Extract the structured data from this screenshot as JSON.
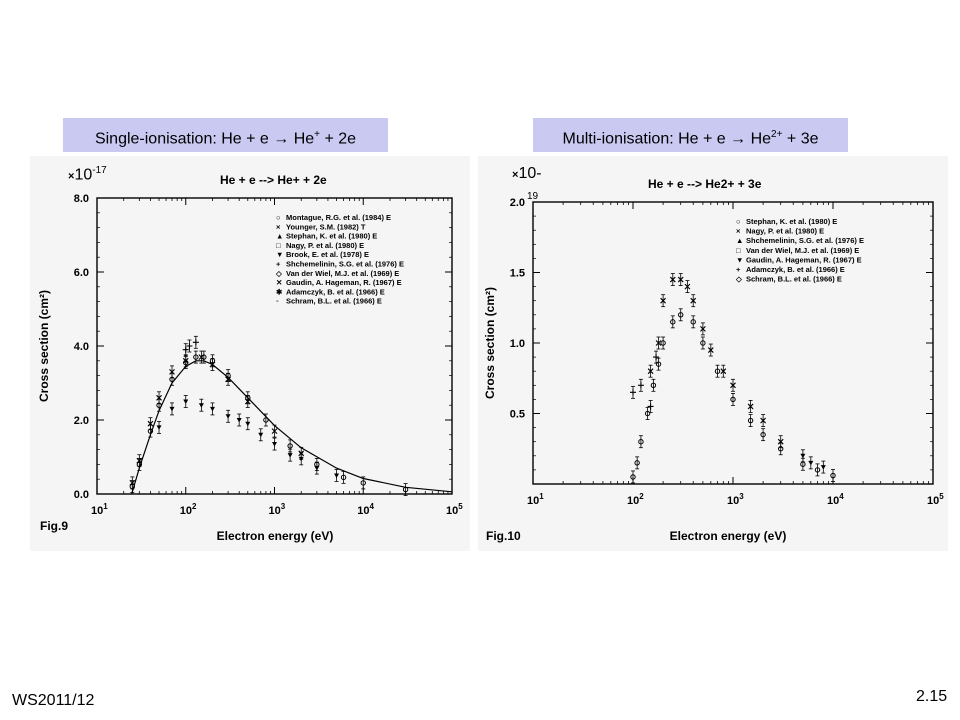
{
  "captions": {
    "left_pre": "Single-ionisation: He + e → He",
    "left_sup": "+",
    "left_post": " + 2e",
    "right_pre": "Multi-ionisation: He + e → He",
    "right_sup": "2+",
    "right_post": " + 3e"
  },
  "footer": {
    "left": "WS2011/12",
    "right": "2.15"
  },
  "colors": {
    "caption_bg": "#c9c9f2",
    "scan_bg": "#f5f5f5"
  },
  "chart_data": [
    {
      "type": "scatter",
      "figure_label": "Fig.9",
      "title": "He + e --> He+ + 2e",
      "scale_mark": "×",
      "scale_base": "10",
      "scale_exp": "-17",
      "xlabel": "Electron energy (eV)",
      "ylabel": "Cross section (cm²)",
      "x_scale": "log",
      "xlim": [
        10,
        100000
      ],
      "ylim": [
        0,
        8.0
      ],
      "x_ticks": [
        10,
        100,
        1000,
        10000,
        100000
      ],
      "x_tick_labels": [
        [
          "10",
          "1"
        ],
        [
          "10",
          "2"
        ],
        [
          "10",
          "3"
        ],
        [
          "10",
          "4"
        ],
        [
          "10",
          "5"
        ]
      ],
      "y_ticks": [
        0,
        2,
        4,
        6,
        8
      ],
      "y_tick_labels": [
        "0.0",
        "2.0",
        "4.0",
        "6.0",
        "8.0"
      ],
      "legend": [
        "Montague, R.G. et al. (1984) E",
        "Younger, S.M. (1982) T",
        "Stephan, K. et al. (1980) E",
        "Nagy, P. et al. (1980) E",
        "Brook, E. et al. (1978) E",
        "Shchemelinin, S.G. et al. (1976) E",
        "Van der Wiel, M.J. et al. (1969) E",
        "Gaudin, A. Hageman, R. (1967) E",
        "Adamczyk, B. et al. (1966) E",
        "Schram, B.L. et al. (1966) E"
      ],
      "legend_symbols": [
        "○",
        "×",
        "▲",
        "□",
        "▼",
        "+",
        "◇",
        "✕",
        "✱",
        "◦"
      ],
      "legend_position": "top-right",
      "series": [
        {
          "values": [
            [
              25,
              0.2
            ],
            [
              30,
              0.8
            ],
            [
              40,
              1.7
            ],
            [
              50,
              2.4
            ],
            [
              70,
              3.1
            ],
            [
              100,
              3.55
            ],
            [
              130,
              3.7
            ],
            [
              160,
              3.7
            ],
            [
              200,
              3.6
            ],
            [
              300,
              3.2
            ],
            [
              500,
              2.6
            ],
            [
              800,
              2.0
            ],
            [
              1500,
              1.3
            ],
            [
              3000,
              0.8
            ],
            [
              6000,
              0.45
            ],
            [
              10000,
              0.3
            ],
            [
              30000,
              0.12
            ]
          ]
        },
        {
          "values": [
            [
              25,
              0.3
            ],
            [
              30,
              0.9
            ],
            [
              40,
              1.9
            ],
            [
              50,
              2.6
            ],
            [
              70,
              3.3
            ],
            [
              100,
              3.6
            ],
            [
              150,
              3.7
            ],
            [
              200,
              3.5
            ],
            [
              300,
              3.1
            ],
            [
              500,
              2.5
            ],
            [
              1000,
              1.7
            ],
            [
              2000,
              1.1
            ]
          ]
        },
        {
          "values": [
            [
              100,
              3.9
            ],
            [
              110,
              4.0
            ],
            [
              130,
              4.1
            ]
          ]
        },
        {
          "values": [
            [
              50,
              1.8
            ],
            [
              70,
              2.3
            ],
            [
              100,
              2.5
            ],
            [
              150,
              2.4
            ],
            [
              200,
              2.3
            ],
            [
              300,
              2.1
            ],
            [
              400,
              2.0
            ],
            [
              500,
              1.9
            ],
            [
              700,
              1.6
            ],
            [
              1000,
              1.35
            ],
            [
              1500,
              1.05
            ],
            [
              2000,
              0.95
            ],
            [
              3000,
              0.7
            ],
            [
              5000,
              0.5
            ]
          ]
        }
      ],
      "fit_curve": [
        [
          24.6,
          0
        ],
        [
          30,
          0.7
        ],
        [
          40,
          1.6
        ],
        [
          50,
          2.25
        ],
        [
          70,
          3.0
        ],
        [
          100,
          3.45
        ],
        [
          130,
          3.6
        ],
        [
          160,
          3.6
        ],
        [
          200,
          3.5
        ],
        [
          300,
          3.15
        ],
        [
          500,
          2.6
        ],
        [
          1000,
          1.85
        ],
        [
          2000,
          1.25
        ],
        [
          5000,
          0.7
        ],
        [
          10000,
          0.42
        ],
        [
          30000,
          0.18
        ],
        [
          100000,
          0.06
        ]
      ]
    },
    {
      "type": "scatter",
      "figure_label": "Fig.10",
      "title": "He + e --> He2+ + 3e",
      "scale_mark": "×",
      "scale_base": "10-",
      "scale_exp": "19",
      "xlabel": "Electron energy (eV)",
      "ylabel": "Cross section (cm²)",
      "x_scale": "log",
      "xlim": [
        10,
        100000
      ],
      "ylim": [
        0,
        2.0
      ],
      "x_ticks": [
        10,
        100,
        1000,
        10000,
        100000
      ],
      "x_tick_labels": [
        [
          "10",
          "1"
        ],
        [
          "10",
          "2"
        ],
        [
          "10",
          "3"
        ],
        [
          "10",
          "4"
        ],
        [
          "10",
          "5"
        ]
      ],
      "y_ticks": [
        0.5,
        1.0,
        1.5,
        2.0
      ],
      "y_tick_labels": [
        "0.5",
        "1.0",
        "1.5",
        "2.0"
      ],
      "legend": [
        "Stephan, K. et al. (1980) E",
        "Nagy, P. et al. (1980) E",
        "Shchemelinin, S.G. et al. (1976) E",
        "Van der Wiel, M.J. et al. (1969) E",
        "Gaudin, A. Hageman, R. (1967) E",
        "Adamczyk, B. et al. (1966) E",
        "Schram, B.L. et al. (1966) E"
      ],
      "legend_symbols": [
        "○",
        "×",
        "▲",
        "□",
        "▼",
        "+",
        "◇"
      ],
      "legend_position": "top-right",
      "series": [
        {
          "values": [
            [
              100,
              0.05
            ],
            [
              110,
              0.15
            ],
            [
              120,
              0.3
            ],
            [
              140,
              0.5
            ],
            [
              160,
              0.7
            ],
            [
              180,
              0.85
            ],
            [
              200,
              1.0
            ],
            [
              250,
              1.15
            ],
            [
              300,
              1.2
            ],
            [
              400,
              1.15
            ],
            [
              500,
              1.0
            ],
            [
              700,
              0.8
            ],
            [
              1000,
              0.6
            ],
            [
              1500,
              0.45
            ],
            [
              2000,
              0.35
            ],
            [
              3000,
              0.25
            ],
            [
              5000,
              0.14
            ],
            [
              7000,
              0.1
            ],
            [
              10000,
              0.06
            ]
          ]
        },
        {
          "values": [
            [
              150,
              0.8
            ],
            [
              180,
              1.0
            ],
            [
              200,
              1.3
            ],
            [
              250,
              1.45
            ],
            [
              300,
              1.45
            ],
            [
              350,
              1.4
            ],
            [
              400,
              1.3
            ],
            [
              500,
              1.1
            ],
            [
              600,
              0.95
            ],
            [
              800,
              0.8
            ],
            [
              1000,
              0.7
            ],
            [
              1500,
              0.55
            ],
            [
              2000,
              0.45
            ],
            [
              3000,
              0.3
            ]
          ]
        },
        {
          "values": [
            [
              100,
              0.65
            ],
            [
              120,
              0.7
            ],
            [
              150,
              0.55
            ],
            [
              170,
              0.9
            ]
          ]
        },
        {
          "values": [
            [
              5000,
              0.2
            ],
            [
              6000,
              0.15
            ],
            [
              8000,
              0.12
            ]
          ]
        }
      ]
    }
  ]
}
